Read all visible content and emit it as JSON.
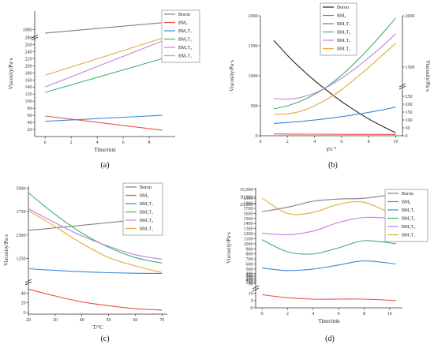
{
  "chart_data": [
    {
      "id": "a",
      "type": "line",
      "caption": "(a)",
      "xlabel": "Time/min",
      "ylabel": "Viscosity/Pa·s",
      "xlim": [
        -0.8,
        10
      ],
      "x_ticks": [
        "0",
        "2",
        "4",
        "6",
        "8"
      ],
      "y_axis_break": true,
      "y_ticks_upper": [
        "1080"
      ],
      "y_ticks_lower": [
        "20",
        "40",
        "60",
        "80",
        "100",
        "120",
        "140",
        "160",
        "180",
        "200",
        "220",
        "240",
        "260",
        "280"
      ],
      "legend_position": "top-right",
      "series": [
        {
          "name": "Boron",
          "color": "#808080",
          "x": [
            0,
            9
          ],
          "y": [
            1070,
            1100
          ]
        },
        {
          "name": "BM₀",
          "color": "#e8504a",
          "x": [
            0,
            9
          ],
          "y": [
            58,
            18
          ]
        },
        {
          "name": "BM₁T₇",
          "color": "#3e87d4",
          "x": [
            0,
            9
          ],
          "y": [
            43,
            60
          ]
        },
        {
          "name": "BM₃T₅",
          "color": "#3cb371",
          "x": [
            0,
            9
          ],
          "y": [
            125,
            220
          ]
        },
        {
          "name": "BM₅T₃",
          "color": "#c57fe0",
          "x": [
            0,
            9
          ],
          "y": [
            140,
            270
          ]
        },
        {
          "name": "BM₇T₁",
          "color": "#e5a93c",
          "x": [
            0,
            9
          ],
          "y": [
            173,
            278
          ]
        }
      ]
    },
    {
      "id": "b",
      "type": "line",
      "caption": "(b)",
      "xlabel": "γ̇/s⁻¹",
      "ylabel": "Viscosity/Pa·s",
      "xlim": [
        0,
        10.5
      ],
      "x_ticks": [
        "0",
        "2",
        "4",
        "6",
        "8",
        "10"
      ],
      "left_y_ticks": [
        "0",
        "500",
        "1000",
        "1500",
        "2000"
      ],
      "right_y_ticks_upper": [
        "1500",
        "2000"
      ],
      "right_y_ticks_lower": [
        "0",
        "50",
        "100",
        "150",
        "200",
        "250"
      ],
      "legend_position": "top-right",
      "series": [
        {
          "name": "Boron",
          "color": "#222222",
          "x": [
            1,
            2,
            3,
            4,
            5,
            6,
            7,
            8,
            9,
            10
          ],
          "y": [
            1590,
            1340,
            1120,
            920,
            740,
            570,
            420,
            280,
            160,
            50
          ]
        },
        {
          "name": "BM₀",
          "color": "#e8504a",
          "x": [
            1,
            2,
            3,
            4,
            5,
            6,
            7,
            8,
            9,
            10
          ],
          "y": [
            30,
            28,
            27,
            26,
            25,
            24,
            23,
            22,
            22,
            21
          ]
        },
        {
          "name": "BM₁T₇",
          "color": "#3e87d4",
          "x": [
            1,
            2,
            3,
            4,
            5,
            6,
            7,
            8,
            9,
            10
          ],
          "y": [
            205,
            220,
            240,
            262,
            288,
            318,
            352,
            390,
            430,
            478
          ]
        },
        {
          "name": "BM₃T₅",
          "color": "#3cb371",
          "x": [
            1,
            2,
            3,
            4,
            5,
            6,
            7,
            8,
            9,
            10
          ],
          "y": [
            450,
            500,
            580,
            690,
            830,
            1010,
            1220,
            1450,
            1700,
            1960
          ]
        },
        {
          "name": "BM₅T₃",
          "color": "#c57fe0",
          "x": [
            1,
            2,
            3,
            4,
            5,
            6,
            7,
            8,
            9,
            10
          ],
          "y": [
            620,
            610,
            640,
            710,
            820,
            960,
            1120,
            1300,
            1490,
            1700
          ]
        },
        {
          "name": "BM₇T₁",
          "color": "#e5a93c",
          "x": [
            1,
            2,
            3,
            4,
            5,
            6,
            7,
            8,
            9,
            10
          ],
          "y": [
            360,
            365,
            410,
            500,
            620,
            770,
            950,
            1140,
            1340,
            1540
          ]
        }
      ]
    },
    {
      "id": "c",
      "type": "line",
      "caption": "(c)",
      "xlabel": "T/°C",
      "ylabel": "Viscosity/Pa·s",
      "xlim": [
        20,
        72
      ],
      "x_ticks": [
        "20",
        "30",
        "40",
        "50",
        "60",
        "70"
      ],
      "y_axis_break": true,
      "y_ticks_upper": [
        "1250",
        "2500",
        "3750",
        "5000"
      ],
      "y_ticks_lower": [
        "0",
        "20",
        "40"
      ],
      "legend_position": "top-right",
      "series": [
        {
          "name": "Boron",
          "color": "#808080",
          "x": [
            20,
            30,
            40,
            50,
            60,
            70
          ],
          "y": [
            2750,
            2880,
            3020,
            3160,
            3300,
            3450
          ]
        },
        {
          "name": "BM₀",
          "color": "#e8504a",
          "x": [
            20,
            30,
            40,
            50,
            60,
            70
          ],
          "y": [
            48,
            34,
            22,
            14,
            8,
            5
          ]
        },
        {
          "name": "BM₁T₇",
          "color": "#3e87d4",
          "x": [
            20,
            30,
            40,
            50,
            60,
            70
          ],
          "y": [
            700,
            610,
            540,
            490,
            460,
            450
          ]
        },
        {
          "name": "BM₃T₅",
          "color": "#3cb371",
          "x": [
            20,
            30,
            40,
            50,
            60,
            70
          ],
          "y": [
            4750,
            3600,
            2600,
            1850,
            1300,
            1000
          ]
        },
        {
          "name": "BM₅T₃",
          "color": "#c57fe0",
          "x": [
            20,
            30,
            40,
            50,
            60,
            70
          ],
          "y": [
            3900,
            3150,
            2450,
            1900,
            1450,
            1200
          ]
        },
        {
          "name": "BM₇T₁",
          "color": "#e5a93c",
          "x": [
            20,
            30,
            40,
            50,
            60,
            70
          ],
          "y": [
            3800,
            2950,
            2050,
            1300,
            850,
            500
          ]
        }
      ]
    },
    {
      "id": "d",
      "type": "line",
      "caption": "(d)",
      "xlabel": "Time/min",
      "ylabel": "Viscosity/Pa·s",
      "xlim": [
        -0.5,
        11
      ],
      "x_ticks": [
        "0",
        "2",
        "4",
        "6",
        "8",
        "10"
      ],
      "y_axis_break": true,
      "y_ticks_top": [
        "25,000",
        "30,000",
        "35,000"
      ],
      "y_ticks_middle": [
        "50",
        "100",
        "150",
        "200",
        "250",
        "300",
        "350",
        "400",
        "500",
        "600",
        "700",
        "800",
        "900",
        "1000",
        "1100",
        "1200",
        "1300",
        "1400",
        "1500",
        "1600",
        "1700",
        "1800",
        "1900"
      ],
      "y_ticks_bottom": [
        "0",
        "5",
        "10"
      ],
      "legend_position": "top-right",
      "series": [
        {
          "name": "Boron",
          "color": "#808080",
          "x": [
            0,
            2,
            4,
            6,
            8,
            10.5
          ],
          "y": [
            20000,
            23000,
            27000,
            28500,
            29000,
            32000
          ]
        },
        {
          "name": "BM₀",
          "color": "#e8504a",
          "x": [
            0,
            2,
            4,
            6,
            8,
            10.5
          ],
          "y": [
            9,
            7,
            6,
            6,
            6,
            5
          ]
        },
        {
          "name": "BM₁T₇",
          "color": "#3e87d4",
          "x": [
            0,
            2,
            4,
            6,
            8,
            10.5
          ],
          "y": [
            520,
            470,
            500,
            580,
            660,
            600
          ]
        },
        {
          "name": "BM₃T₅",
          "color": "#3cb371",
          "x": [
            0,
            2,
            4,
            6,
            8,
            10.5
          ],
          "y": [
            1080,
            840,
            800,
            920,
            1060,
            1000
          ]
        },
        {
          "name": "BM₅T₃",
          "color": "#c57fe0",
          "x": [
            0,
            2,
            4,
            6,
            8,
            10.5
          ],
          "y": [
            1210,
            1180,
            1250,
            1420,
            1520,
            1500
          ]
        },
        {
          "name": "BM₇T₁",
          "color": "#e5a93c",
          "x": [
            0,
            2,
            4,
            6,
            8,
            10.5
          ],
          "y": [
            1900,
            1600,
            1620,
            1780,
            1820,
            1550
          ]
        }
      ]
    }
  ]
}
